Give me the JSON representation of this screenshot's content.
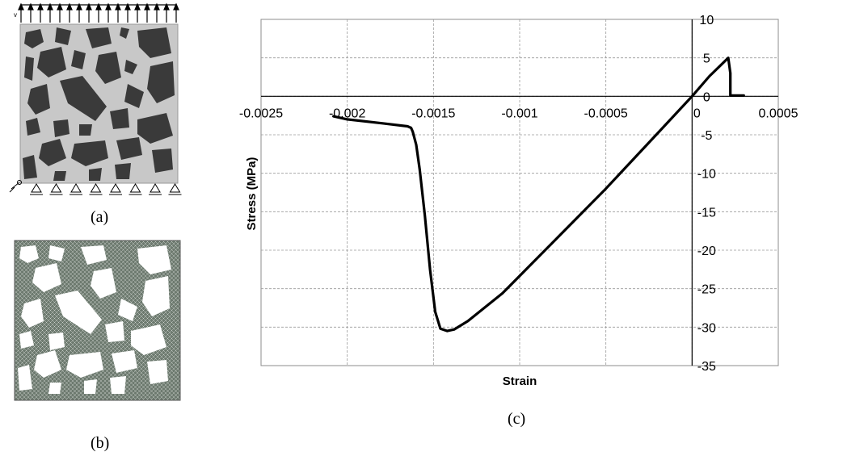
{
  "panels": {
    "a": {
      "caption": "(a)",
      "load_label": "v",
      "colors": {
        "matrix": "#c8c8c8",
        "aggregate": "#3a3a3a"
      }
    },
    "b": {
      "caption": "(b)",
      "colors": {
        "mesh": "#6d7a6f",
        "aggregate": "#ffffff"
      }
    },
    "c": {
      "caption": "(c)"
    }
  },
  "chart_data": {
    "type": "line",
    "title": "",
    "xlabel": "Strain",
    "ylabel": "Stress (MPa)",
    "xlim": [
      -0.0025,
      0.0005
    ],
    "ylim": [
      -35,
      10
    ],
    "xticks": [
      -0.0025,
      -0.002,
      -0.0015,
      -0.001,
      -0.0005,
      0,
      0.0005
    ],
    "xtick_labels": [
      "-0.0025",
      "-0.002",
      "-0.0015",
      "-0.001",
      "-0.0005",
      "0",
      "0.0005"
    ],
    "yticks": [
      10,
      5,
      0,
      -5,
      -10,
      -15,
      -20,
      -25,
      -30,
      -35
    ],
    "ytick_labels": [
      "10",
      "5",
      "0",
      "-5",
      "-10",
      "-15",
      "-20",
      "-25",
      "-30",
      "-35"
    ],
    "grid": true,
    "series": [
      {
        "color": "#000000",
        "x": [
          0.0003,
          0.00025,
          0.000222,
          0.000222,
          0.00021,
          0.0001,
          0,
          -0.0002,
          -0.0005,
          -0.0008,
          -0.0011,
          -0.0013,
          -0.00138,
          -0.00142,
          -0.00146,
          -0.00149,
          -0.00152,
          -0.00155,
          -0.00158,
          -0.0016,
          -0.00162,
          -0.00163,
          -0.00165,
          -0.0018,
          -0.002,
          -0.00208
        ],
        "y": [
          0.1,
          0.1,
          0.1,
          3.0,
          5.0,
          2.6,
          0.0,
          -4.8,
          -12.0,
          -18.8,
          -25.6,
          -29.2,
          -30.3,
          -30.5,
          -30.2,
          -28.0,
          -22.5,
          -15.5,
          -9.5,
          -6.3,
          -4.6,
          -4.1,
          -3.9,
          -3.5,
          -3.0,
          -2.6
        ]
      }
    ]
  }
}
